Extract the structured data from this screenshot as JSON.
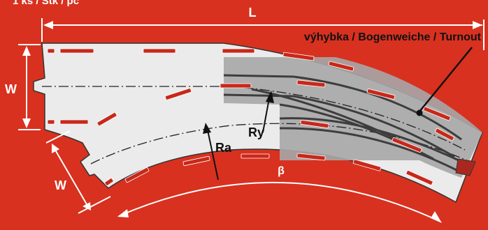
{
  "header": {
    "pieces_label": "1 ks / Stk / pc"
  },
  "dimensions": {
    "length": "L",
    "width_top": "W",
    "width_bottom": "W",
    "angle": "β"
  },
  "radii": {
    "outer": "Ra",
    "turnout": "Ry"
  },
  "turnout": {
    "label": "výhybka / Bogenweiche / Turnout"
  },
  "colors": {
    "background": "#d8311f",
    "track": "#ebebeb",
    "shade": "#a7a7a7",
    "rail": "#3d3d3d",
    "slot": "#c8281a"
  }
}
